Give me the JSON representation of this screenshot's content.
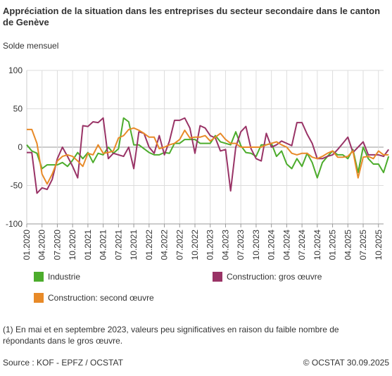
{
  "title": "Appréciation de la situation dans les entreprises du secteur secondaire dans le canton de Genève",
  "subtitle": "Solde mensuel",
  "note": "(1) En mai et en septembre 2023, valeurs peu significatives en raison du faible nombre de répondants dans le gros œuvre.",
  "source": "Source : KOF - EPFZ / OCSTAT",
  "copyright": "© OCSTAT 30.09.2025",
  "chart_data": {
    "type": "line",
    "ylim": [
      -100,
      100
    ],
    "yticks": [
      100,
      50,
      0,
      -50,
      -100
    ],
    "xticks": [
      "01.2020",
      "04.2020",
      "07.2020",
      "10.2020",
      "01.2021",
      "04.2021",
      "07.2021",
      "10.2021",
      "01.2022",
      "04.2022",
      "07.2022",
      "10.2022",
      "01.2023",
      "04.2023",
      "07.2023",
      "10.2023",
      "01.2024",
      "04.2024",
      "07.2024",
      "10.2024",
      "01.2025",
      "04.2025",
      "07.2025",
      "10.2025"
    ],
    "x_start": "01.2020",
    "grid": true,
    "legend_position": "bottom",
    "series": [
      {
        "name": "Industrie",
        "color": "#4cac2c",
        "values": [
          3,
          -5,
          -8,
          -28,
          -23,
          -23,
          -23,
          -20,
          -25,
          -17,
          -7,
          -15,
          -7,
          -20,
          -8,
          -10,
          0,
          -8,
          -2,
          38,
          33,
          3,
          3,
          -2,
          -7,
          -10,
          -10,
          -7,
          -8,
          5,
          5,
          10,
          10,
          10,
          5,
          5,
          5,
          15,
          7,
          5,
          3,
          20,
          2,
          -7,
          -8,
          -12,
          3,
          3,
          5,
          -12,
          -5,
          -22,
          -28,
          -15,
          -25,
          -8,
          -20,
          -40,
          -20,
          -12,
          -5,
          -10,
          -10,
          -15,
          -3,
          -33,
          0,
          -15,
          -22,
          -22,
          -33,
          -12
        ],
        "line_width": 2
      },
      {
        "name": "Construction: gros œuvre",
        "color": "#993366",
        "values": [
          -7,
          -7,
          -60,
          -53,
          -55,
          -42,
          -15,
          0,
          -12,
          -25,
          -40,
          28,
          27,
          33,
          32,
          38,
          -15,
          -8,
          -10,
          -12,
          0,
          -28,
          20,
          18,
          0,
          -8,
          15,
          -10,
          8,
          35,
          35,
          38,
          25,
          -8,
          28,
          25,
          15,
          12,
          -5,
          -3,
          -57,
          0,
          20,
          27,
          -2,
          -15,
          -18,
          18,
          0,
          3,
          8,
          5,
          2,
          32,
          32,
          17,
          5,
          -15,
          -15,
          -12,
          -10,
          -3,
          5,
          13,
          -7,
          0,
          7,
          -10,
          -10,
          -10,
          -12,
          -3
        ],
        "line_width": 2
      },
      {
        "name": "Construction: second œuvre",
        "color": "#e88a28",
        "values": [
          23,
          23,
          5,
          -35,
          -48,
          -35,
          -18,
          -12,
          -10,
          -12,
          -18,
          -25,
          -8,
          -10,
          3,
          -8,
          -7,
          -5,
          12,
          15,
          23,
          25,
          22,
          18,
          13,
          13,
          -2,
          0,
          3,
          5,
          10,
          22,
          12,
          13,
          13,
          15,
          8,
          13,
          18,
          10,
          5,
          5,
          0,
          0,
          0,
          0,
          0,
          3,
          5,
          7,
          3,
          0,
          -8,
          -10,
          -8,
          -8,
          -13,
          -15,
          -12,
          -8,
          -5,
          -13,
          -13,
          -12,
          -5,
          -40,
          -13,
          -12,
          -15,
          -5,
          -10,
          -10
        ],
        "line_width": 2
      }
    ]
  }
}
